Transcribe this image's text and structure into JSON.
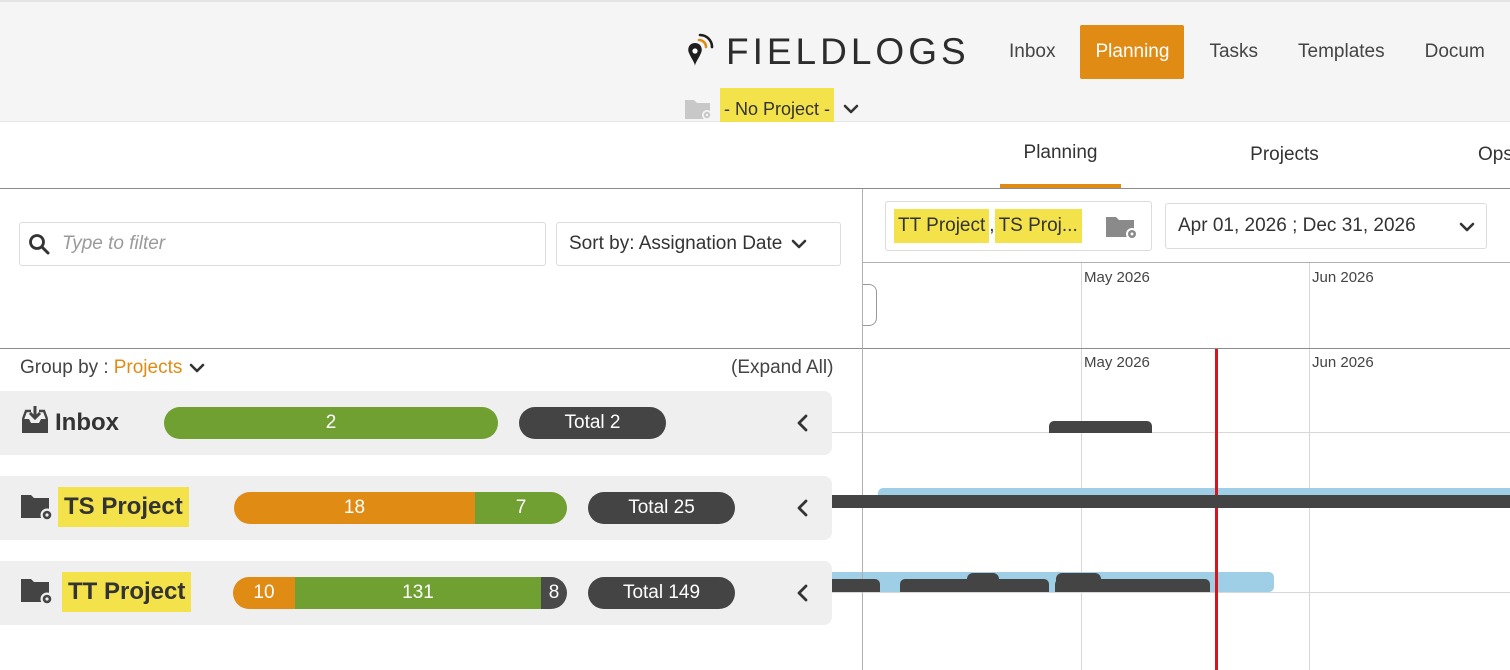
{
  "header": {
    "logo_text": "FIELDLOGS",
    "nav": [
      {
        "label": "Inbox",
        "active": false
      },
      {
        "label": "Planning",
        "active": true
      },
      {
        "label": "Tasks",
        "active": false
      },
      {
        "label": "Templates",
        "active": false
      },
      {
        "label": "Docum",
        "active": false
      }
    ],
    "project_selector": "- No Project -"
  },
  "sub_nav": {
    "tabs": [
      {
        "label": "Planning",
        "active": true
      },
      {
        "label": "Projects",
        "active": false
      },
      {
        "label": "Ops",
        "active": false
      }
    ]
  },
  "toolbar": {
    "filter_placeholder": "Type to filter",
    "sort_label": "Sort by: Assignation Date",
    "group_by_label": "Group by :",
    "group_by_value": "Projects",
    "expand_all": "(Expand All)"
  },
  "groups": [
    {
      "name": "Inbox",
      "highlighted": false,
      "segments": [
        {
          "color": "green",
          "value": "2"
        }
      ],
      "total": "Total 2"
    },
    {
      "name": "TS Project",
      "highlighted": true,
      "segments": [
        {
          "color": "orange",
          "value": "18"
        },
        {
          "color": "green",
          "value": "7"
        }
      ],
      "total": "Total 25"
    },
    {
      "name": "TT Project",
      "highlighted": true,
      "segments": [
        {
          "color": "orange",
          "value": "10"
        },
        {
          "color": "green",
          "value": "131"
        },
        {
          "color": "dark",
          "value": "8"
        }
      ],
      "total": "Total 149"
    }
  ],
  "timeline": {
    "project_chips": [
      "TT Project",
      "TS Proj..."
    ],
    "project_chip_sep": ",",
    "date_range": "Apr 01, 2026 ; Dec 31, 2026",
    "months": [
      "May 2026",
      "Jun 2026"
    ]
  },
  "colors": {
    "accent": "#e08b14",
    "green": "#6fa031",
    "dark": "#444444",
    "highlight": "#f3e24a",
    "today_line": "#d3171d",
    "light_blue": "#9fcfe6"
  }
}
